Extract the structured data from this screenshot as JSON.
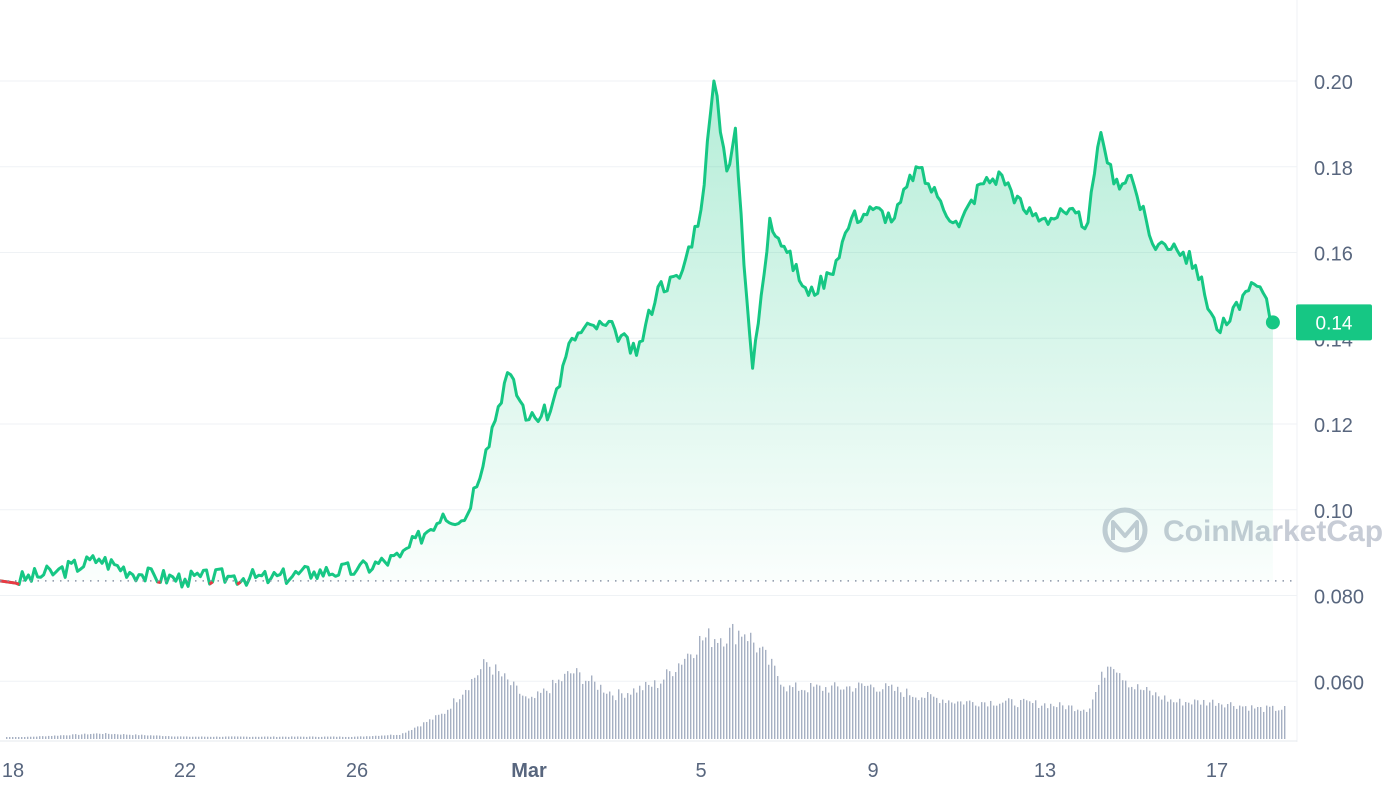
{
  "colors": {
    "up": "#16c784",
    "down": "#ea3943",
    "grid": "#eff2f5",
    "axis_text": "#58667e",
    "volume": "#a6b0c3",
    "watermark": "#c7ccd6"
  },
  "watermark": {
    "text": "CoinMarketCap",
    "icon": "coinmarketcap-logo-icon"
  },
  "current_price": {
    "label": "0.14",
    "value": 0.1437
  },
  "baseline": {
    "value": 0.0834,
    "style": "dotted"
  },
  "chart_data": {
    "type": "area",
    "series": [
      {
        "x": [
          "Feb 18",
          "Feb 19",
          "Feb 20",
          "Feb 21",
          "Feb 22",
          "Feb 23",
          "Feb 24",
          "Feb 25",
          "Feb 26",
          "Feb 27",
          "Feb 28",
          "Feb 28.5",
          "Feb 29",
          "Feb 29.5",
          "Mar 1",
          "Mar 1.5",
          "Mar 2",
          "Mar 2.5",
          "Mar 3",
          "Mar 3.5",
          "Mar 4",
          "Mar 4.5",
          "Mar 5",
          "Mar 5.3",
          "Mar 5.6",
          "Mar 5.8",
          "Mar 6",
          "Mar 6.2",
          "Mar 6.4",
          "Mar 6.6",
          "Mar 7",
          "Mar 7.5",
          "Mar 8",
          "Mar 8.5",
          "Mar 9",
          "Mar 9.5",
          "Mar 10",
          "Mar 10.5",
          "Mar 11",
          "Mar 11.5",
          "Mar 12",
          "Mar 12.5",
          "Mar 13",
          "Mar 13.5",
          "Mar 14",
          "Mar 14.3",
          "Mar 14.6",
          "Mar 15",
          "Mar 15.5",
          "Mar 16",
          "Mar 16.5",
          "Mar 17",
          "Mar 17.3",
          "Mar 17.6",
          "Mar 18",
          "Mar 18.3"
        ],
        "values": [
          0.0834,
          0.0855,
          0.0885,
          0.0848,
          0.0838,
          0.0845,
          0.084,
          0.0855,
          0.086,
          0.089,
          0.099,
          0.0975,
          0.114,
          0.132,
          0.121,
          0.123,
          0.14,
          0.143,
          0.142,
          0.136,
          0.152,
          0.154,
          0.17,
          0.2,
          0.179,
          0.189,
          0.157,
          0.133,
          0.15,
          0.168,
          0.16,
          0.15,
          0.155,
          0.168,
          0.17,
          0.168,
          0.18,
          0.173,
          0.166,
          0.176,
          0.178,
          0.17,
          0.168,
          0.169,
          0.167,
          0.188,
          0.176,
          0.178,
          0.162,
          0.162,
          0.157,
          0.142,
          0.144,
          0.15,
          0.152,
          0.1437
        ]
      }
    ],
    "volume_series": {
      "x": [
        "Feb 18",
        "Feb 20",
        "Feb 22",
        "Feb 24",
        "Feb 26",
        "Feb 27",
        "Feb 28",
        "Feb 29",
        "Mar 1",
        "Mar 2",
        "Mar 3",
        "Mar 4",
        "Mar 5",
        "Mar 6",
        "Mar 7",
        "Mar 8",
        "Mar 9",
        "Mar 10",
        "Mar 11",
        "Mar 12",
        "Mar 13",
        "Mar 14",
        "Mar 14.5",
        "Mar 15",
        "Mar 16",
        "Mar 17",
        "Mar 18"
      ],
      "values": [
        3,
        12,
        5,
        5,
        5,
        10,
        55,
        165,
        80,
        145,
        95,
        120,
        215,
        235,
        110,
        110,
        115,
        95,
        80,
        80,
        75,
        65,
        175,
        115,
        80,
        80,
        65
      ]
    },
    "x_ticks": [
      {
        "label": "18",
        "x": "Feb 18"
      },
      {
        "label": "22",
        "x": "Feb 22"
      },
      {
        "label": "26",
        "x": "Feb 26"
      },
      {
        "label": "Mar",
        "x": "Mar 1",
        "bold": true
      },
      {
        "label": "5",
        "x": "Mar 5"
      },
      {
        "label": "9",
        "x": "Mar 9"
      },
      {
        "label": "13",
        "x": "Mar 13"
      },
      {
        "label": "17",
        "x": "Mar 17"
      }
    ],
    "y_ticks": [
      "0.20",
      "0.18",
      "0.16",
      "0.14",
      "0.12",
      "0.10",
      "0.080",
      "0.060"
    ],
    "ylim": [
      0.048,
      0.215
    ],
    "grid": true
  }
}
